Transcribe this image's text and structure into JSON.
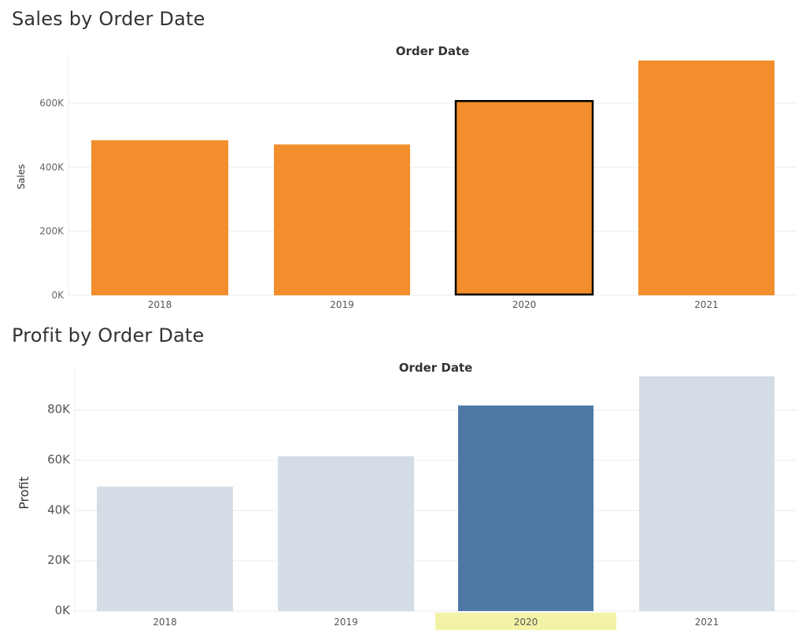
{
  "sheets": {
    "sales_title": "Sales by Order Date",
    "profit_title": "Profit by Order Date"
  },
  "colors": {
    "sales_bar": "#f28e2b",
    "profit_bar": "#d4dde6",
    "profit_selected": "#4e79a7",
    "selection_border": "#000000",
    "highlight_label_bg": "#f3f3a7",
    "gridline": "#ececec"
  },
  "chart_data": [
    {
      "type": "bar",
      "title": "Sales by Order Date",
      "column_header": "Order Date",
      "xlabel": "",
      "ylabel": "Sales",
      "categories": [
        "2018",
        "2019",
        "2020",
        "2021"
      ],
      "values": [
        484000,
        471000,
        609000,
        733000
      ],
      "ylim": [
        0,
        740000
      ],
      "yticks": [
        0,
        200000,
        400000,
        600000
      ],
      "ytick_labels": [
        "0K",
        "200K",
        "400K",
        "600K"
      ],
      "selected": "2020",
      "grid": true
    },
    {
      "type": "bar",
      "title": "Profit by Order Date",
      "column_header": "Order Date",
      "xlabel": "",
      "ylabel": "Profit",
      "categories": [
        "2018",
        "2019",
        "2020",
        "2021"
      ],
      "values": [
        49500,
        61600,
        81800,
        93400
      ],
      "ylim": [
        0,
        94000
      ],
      "yticks": [
        0,
        20000,
        40000,
        60000,
        80000
      ],
      "ytick_labels": [
        "0K",
        "20K",
        "40K",
        "60K",
        "80K"
      ],
      "selected": "2020",
      "grid": true
    }
  ]
}
